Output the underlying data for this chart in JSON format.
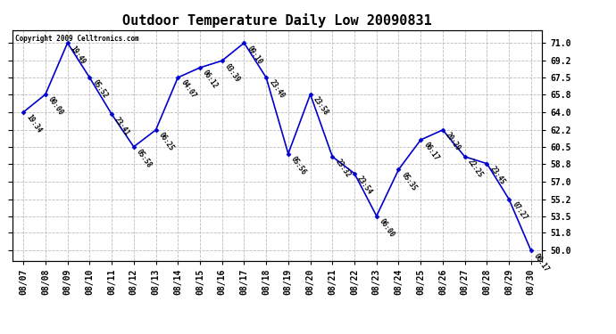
{
  "title": "Outdoor Temperature Daily Low 20090831",
  "copyright": "Copyright 2009 Celltronics.com",
  "line_color": "#0000CC",
  "marker_color": "#0000CC",
  "background_color": "#ffffff",
  "grid_color": "#bbbbbb",
  "dates": [
    "08/07",
    "08/08",
    "08/09",
    "08/10",
    "08/11",
    "08/12",
    "08/13",
    "08/14",
    "08/15",
    "08/16",
    "08/17",
    "08/18",
    "08/19",
    "08/20",
    "08/21",
    "08/22",
    "08/23",
    "08/24",
    "08/25",
    "08/26",
    "08/27",
    "08/28",
    "08/29",
    "08/30"
  ],
  "temps": [
    64.0,
    65.8,
    71.0,
    67.5,
    63.8,
    60.5,
    62.2,
    67.5,
    68.5,
    69.2,
    71.0,
    67.5,
    59.8,
    65.8,
    59.5,
    57.8,
    53.5,
    58.2,
    61.2,
    62.2,
    59.5,
    58.8,
    55.2,
    50.0
  ],
  "time_labels": [
    "19:34",
    "00:00",
    "19:49",
    "05:52",
    "23:41",
    "05:58",
    "06:25",
    "04:07",
    "06:12",
    "03:39",
    "09:10",
    "23:40",
    "05:56",
    "23:58",
    "23:32",
    "23:54",
    "06:00",
    "05:35",
    "06:17",
    "20:29",
    "22:25",
    "23:45",
    "07:27",
    "06:17"
  ],
  "yticks": [
    50.0,
    51.8,
    53.5,
    55.2,
    57.0,
    58.8,
    60.5,
    62.2,
    64.0,
    65.8,
    67.5,
    69.2,
    71.0
  ],
  "ylim": [
    49.0,
    72.3
  ],
  "title_fontsize": 11,
  "label_fontsize": 7,
  "tick_fontsize": 7
}
